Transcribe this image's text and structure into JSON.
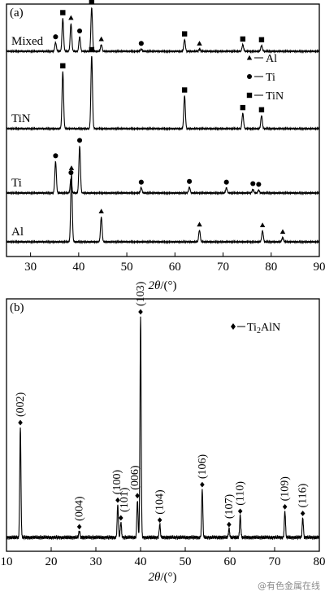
{
  "chart_data": [
    {
      "panel_label": "(a)",
      "type": "line",
      "xlabel_italic": "2θ",
      "xlabel_unit": "/(°)",
      "xlim": [
        25,
        90
      ],
      "xticks": [
        30,
        40,
        50,
        60,
        70,
        80,
        90
      ],
      "legend": [
        {
          "marker": "triangle",
          "text": "Al"
        },
        {
          "marker": "circle",
          "text": "Ti"
        },
        {
          "marker": "square",
          "text": "TiN"
        }
      ],
      "series": [
        {
          "name": "Mixed",
          "peaks": [
            {
              "x": 35.2,
              "h": 0.12,
              "m": "circle"
            },
            {
              "x": 36.7,
              "h": 0.45,
              "m": "square"
            },
            {
              "x": 38.4,
              "h": 0.38,
              "m": "triangle"
            },
            {
              "x": 40.2,
              "h": 0.2,
              "m": "circle"
            },
            {
              "x": 42.7,
              "h": 0.6,
              "m": "square"
            },
            {
              "x": 44.7,
              "h": 0.09,
              "m": "triangle"
            },
            {
              "x": 53.0,
              "h": 0.03,
              "m": "circle"
            },
            {
              "x": 62.0,
              "h": 0.16,
              "m": "square"
            },
            {
              "x": 65.1,
              "h": 0.03,
              "m": "triangle"
            },
            {
              "x": 74.1,
              "h": 0.09,
              "m": "square"
            },
            {
              "x": 78.0,
              "h": 0.08,
              "m": "square"
            }
          ]
        },
        {
          "name": "TiN",
          "peaks": [
            {
              "x": 36.7,
              "h": 0.78,
              "m": "square"
            },
            {
              "x": 42.7,
              "h": 1.0,
              "m": "square"
            },
            {
              "x": 62.0,
              "h": 0.45,
              "m": "square"
            },
            {
              "x": 74.1,
              "h": 0.21,
              "m": "square"
            },
            {
              "x": 78.0,
              "h": 0.18,
              "m": "square"
            }
          ]
        },
        {
          "name": "Ti",
          "peaks": [
            {
              "x": 35.2,
              "h": 0.43,
              "m": "circle"
            },
            {
              "x": 38.4,
              "h": 0.2,
              "m": "circle"
            },
            {
              "x": 40.2,
              "h": 0.64,
              "m": "circle"
            },
            {
              "x": 53.0,
              "h": 0.07,
              "m": "circle"
            },
            {
              "x": 59.3,
              "h": 0.0,
              "m": ""
            },
            {
              "x": 63.0,
              "h": 0.08,
              "m": "circle"
            },
            {
              "x": 70.7,
              "h": 0.07,
              "m": "circle"
            },
            {
              "x": 76.2,
              "h": 0.05,
              "m": "circle"
            },
            {
              "x": 77.4,
              "h": 0.04,
              "m": "circle"
            }
          ]
        },
        {
          "name": "Al",
          "peaks": [
            {
              "x": 38.5,
              "h": 0.93,
              "m": "triangle"
            },
            {
              "x": 44.7,
              "h": 0.34,
              "m": "triangle"
            },
            {
              "x": 65.1,
              "h": 0.16,
              "m": "triangle"
            },
            {
              "x": 78.2,
              "h": 0.15,
              "m": "triangle"
            },
            {
              "x": 82.4,
              "h": 0.06,
              "m": "triangle"
            }
          ]
        }
      ]
    },
    {
      "panel_label": "(b)",
      "type": "line",
      "xlabel_italic": "2θ",
      "xlabel_unit": "/(°)",
      "xlim": [
        10,
        80
      ],
      "xticks": [
        10,
        20,
        30,
        40,
        50,
        60,
        70,
        80
      ],
      "legend": [
        {
          "marker": "diamond",
          "text_main": "Ti",
          "text_sub": "2",
          "text_rest": "AlN"
        }
      ],
      "series": [
        {
          "name": "Ti2AlN",
          "peaks": [
            {
              "x": 13.1,
              "h": 0.5,
              "label": "(002)"
            },
            {
              "x": 26.3,
              "h": 0.03,
              "label": "(004)"
            },
            {
              "x": 34.9,
              "h": 0.15,
              "label": "(100)"
            },
            {
              "x": 35.6,
              "h": 0.07,
              "label": "(101)"
            },
            {
              "x": 39.3,
              "h": 0.17,
              "label": "(006)"
            },
            {
              "x": 40.0,
              "h": 1.0,
              "label": "(103)"
            },
            {
              "x": 44.3,
              "h": 0.06,
              "label": "(104)"
            },
            {
              "x": 53.8,
              "h": 0.22,
              "label": "(106)"
            },
            {
              "x": 59.8,
              "h": 0.04,
              "label": "(107)"
            },
            {
              "x": 62.3,
              "h": 0.1,
              "label": "(110)"
            },
            {
              "x": 72.3,
              "h": 0.12,
              "label": "(109)"
            },
            {
              "x": 76.3,
              "h": 0.09,
              "label": "(116)"
            }
          ]
        }
      ]
    }
  ],
  "watermark": "@有色金属在线"
}
